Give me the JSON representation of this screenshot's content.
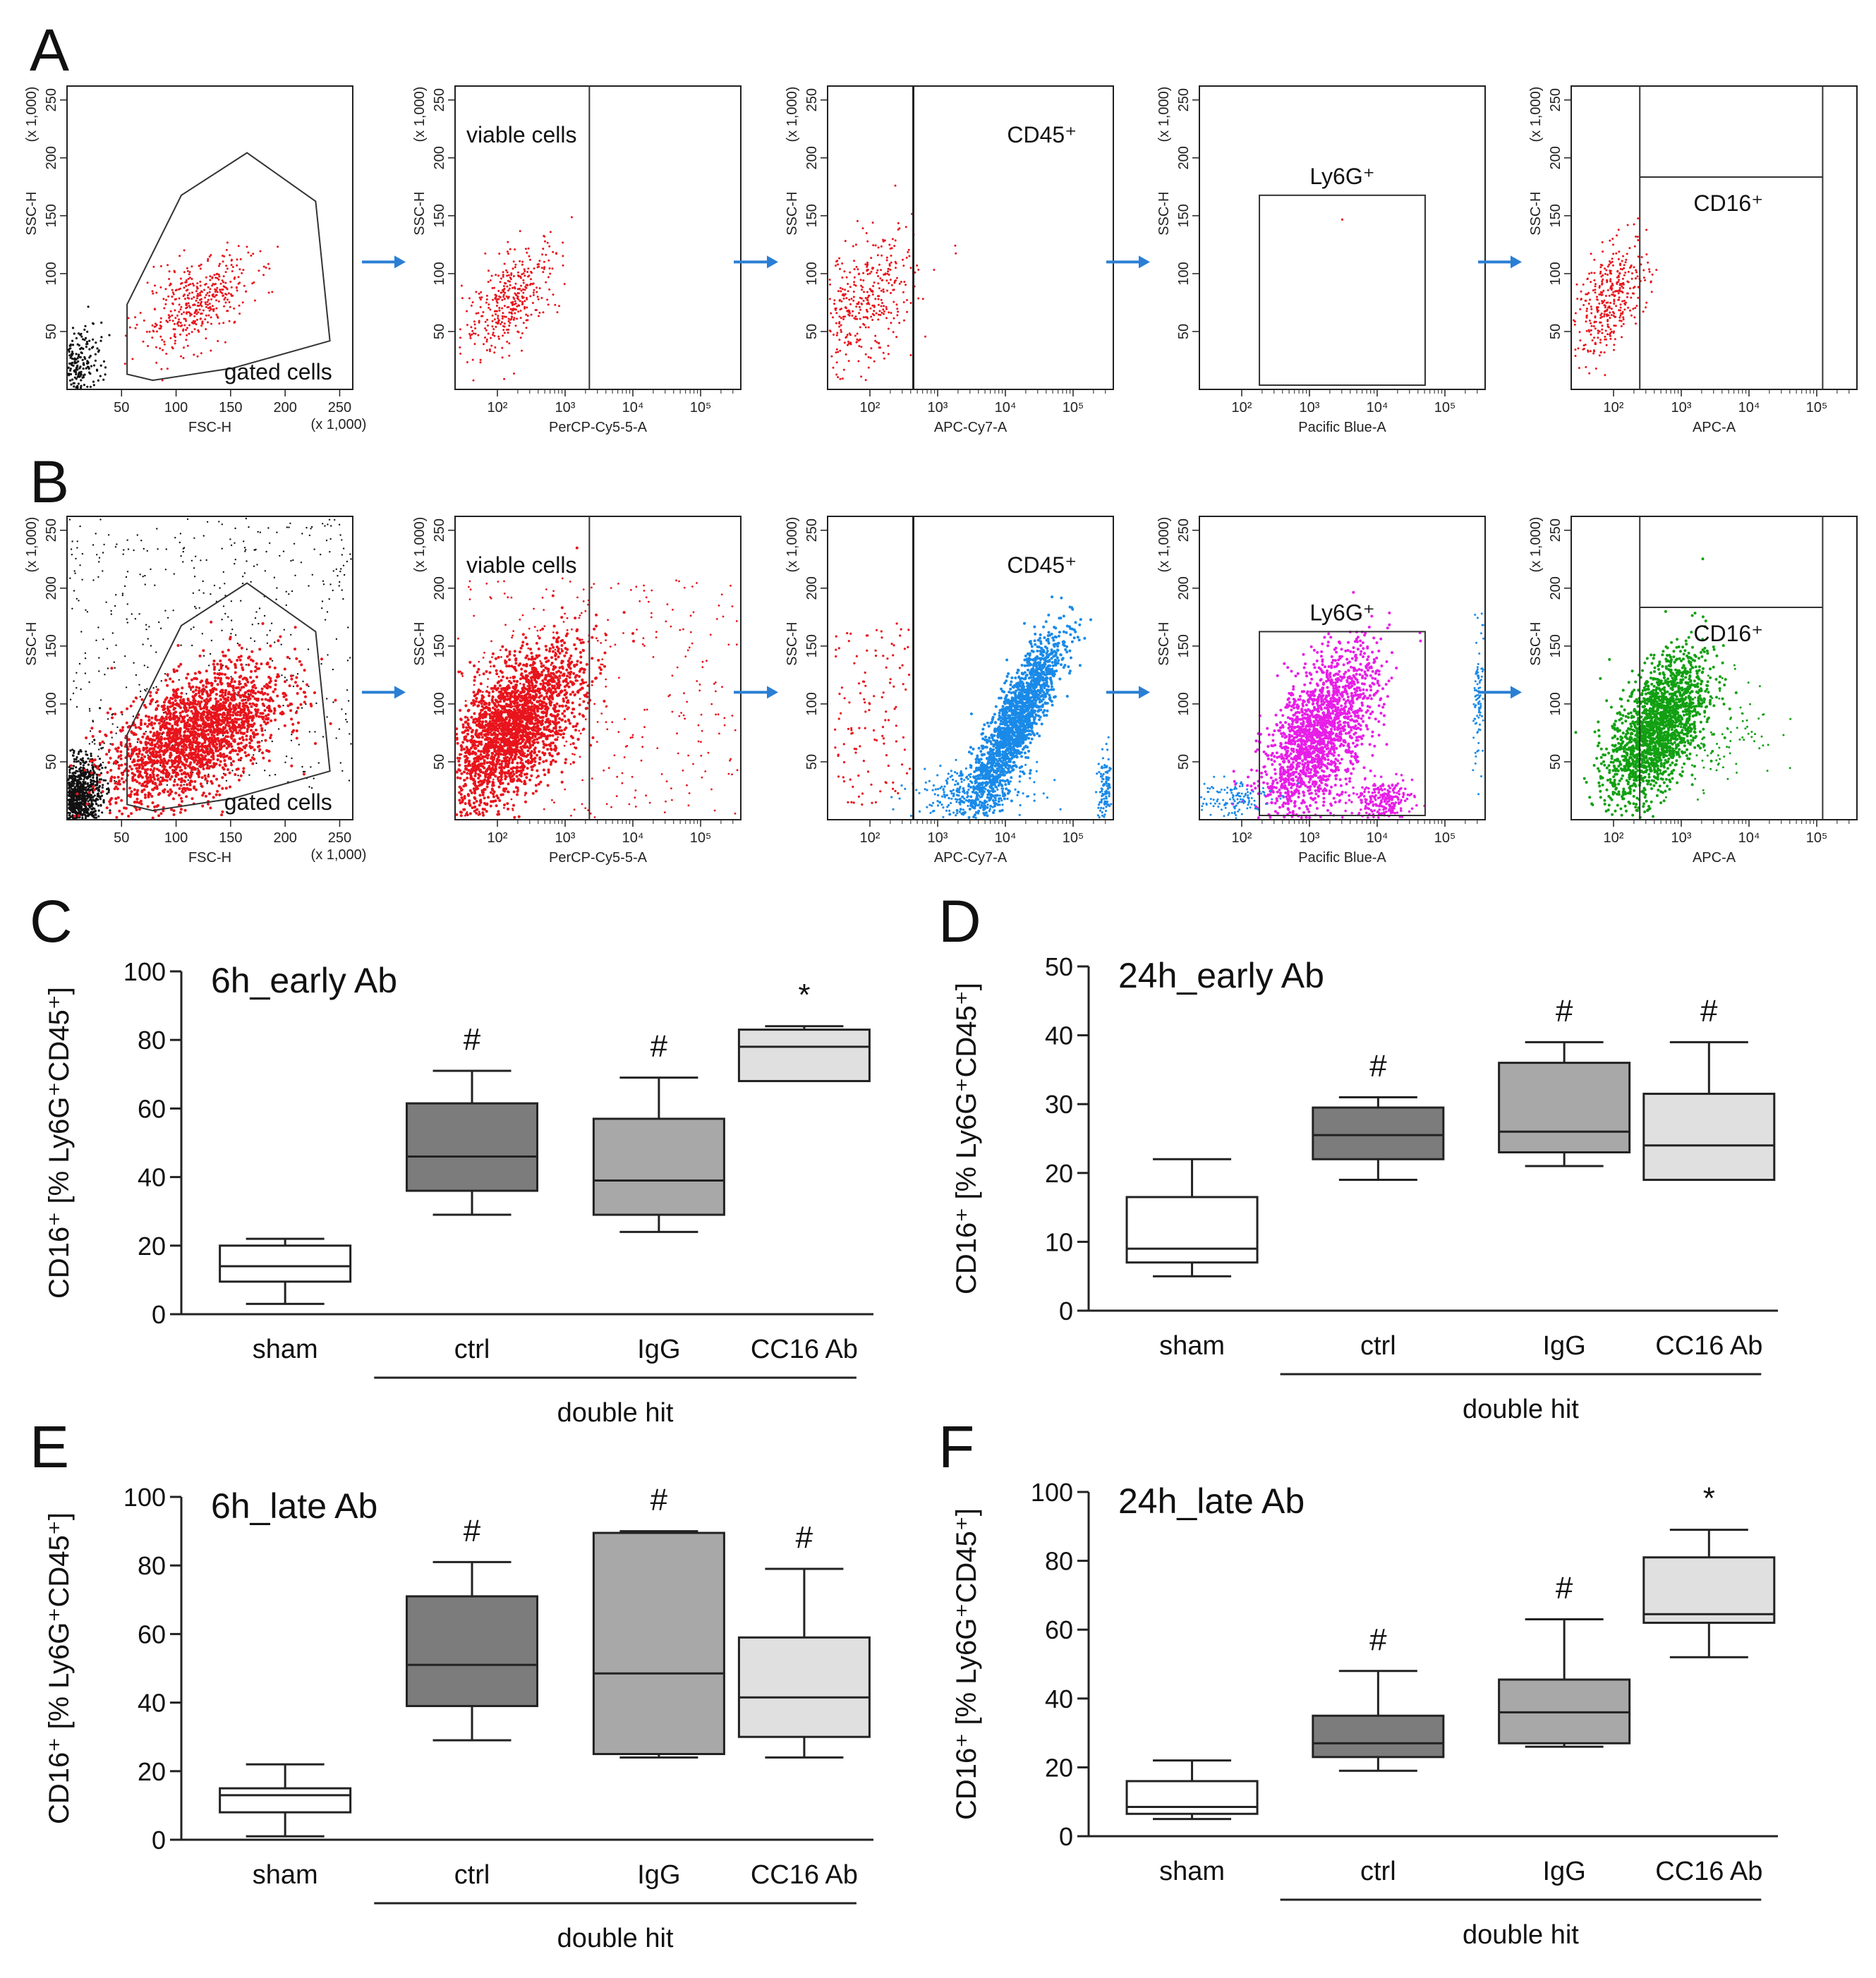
{
  "figure": {
    "panel_letters": [
      "A",
      "B",
      "C",
      "D",
      "E",
      "F"
    ]
  },
  "flow_rows": [
    {
      "id": "A",
      "plots": [
        {
          "xlabel": "FSC-H",
          "xscale": "(x 1,000)",
          "xticks": [
            "50",
            "100",
            "150",
            "200",
            "250"
          ],
          "ylabel": "SSC-H",
          "yscale": "(x 1,000)",
          "yticks": [
            "50",
            "100",
            "150",
            "200",
            "250"
          ],
          "gate_label": "gated cells",
          "kind": "fsc"
        },
        {
          "xlabel": "PerCP-Cy5-5-A",
          "xticks": [
            "10²",
            "10³",
            "10⁴",
            "10⁵"
          ],
          "ylabel": "SSC-H",
          "yscale": "(x 1,000)",
          "yticks": [
            "50",
            "100",
            "150",
            "200",
            "250"
          ],
          "gate_label": "viable cells",
          "kind": "viable"
        },
        {
          "xlabel": "APC-Cy7-A",
          "xticks": [
            "10²",
            "10³",
            "10⁴",
            "10⁵"
          ],
          "ylabel": "SSC-H",
          "yscale": "(x 1,000)",
          "yticks": [
            "50",
            "100",
            "150",
            "200",
            "250"
          ],
          "gate_label": "CD45⁺",
          "kind": "cd45"
        },
        {
          "xlabel": "Pacific Blue-A",
          "xticks": [
            "10²",
            "10³",
            "10⁴",
            "10⁵"
          ],
          "ylabel": "SSC-H",
          "yscale": "(x 1,000)",
          "yticks": [
            "50",
            "100",
            "150",
            "200",
            "250"
          ],
          "gate_label": "Ly6G⁺",
          "kind": "ly6g"
        },
        {
          "xlabel": "APC-A",
          "xticks": [
            "10²",
            "10³",
            "10⁴",
            "10⁵"
          ],
          "ylabel": "SSC-H",
          "yscale": "(x 1,000)",
          "yticks": [
            "50",
            "100",
            "150",
            "200",
            "250"
          ],
          "gate_label": "CD16⁺",
          "kind": "cd16"
        }
      ]
    },
    {
      "id": "B",
      "plots": [
        {
          "xlabel": "FSC-H",
          "xscale": "(x 1,000)",
          "xticks": [
            "50",
            "100",
            "150",
            "200",
            "250"
          ],
          "ylabel": "SSC-H",
          "yscale": "(x 1,000)",
          "yticks": [
            "50",
            "100",
            "150",
            "200",
            "250"
          ],
          "gate_label": "gated cells",
          "kind": "fsc"
        },
        {
          "xlabel": "PerCP-Cy5-5-A",
          "xticks": [
            "10²",
            "10³",
            "10⁴",
            "10⁵"
          ],
          "ylabel": "SSC-H",
          "yscale": "(x 1,000)",
          "yticks": [
            "50",
            "100",
            "150",
            "200",
            "250"
          ],
          "gate_label": "viable cells",
          "kind": "viable"
        },
        {
          "xlabel": "APC-Cy7-A",
          "xticks": [
            "10²",
            "10³",
            "10⁴",
            "10⁵"
          ],
          "ylabel": "SSC-H",
          "yscale": "(x 1,000)",
          "yticks": [
            "50",
            "100",
            "150",
            "200",
            "250"
          ],
          "gate_label": "CD45⁺",
          "kind": "cd45"
        },
        {
          "xlabel": "Pacific Blue-A",
          "xticks": [
            "10²",
            "10³",
            "10⁴",
            "10⁵"
          ],
          "ylabel": "SSC-H",
          "yscale": "(x 1,000)",
          "yticks": [
            "50",
            "100",
            "150",
            "200",
            "250"
          ],
          "gate_label": "Ly6G⁺",
          "kind": "ly6g"
        },
        {
          "xlabel": "APC-A",
          "xticks": [
            "10²",
            "10³",
            "10⁴",
            "10⁵"
          ],
          "ylabel": "SSC-H",
          "yscale": "(x 1,000)",
          "yticks": [
            "50",
            "100",
            "150",
            "200",
            "250"
          ],
          "gate_label": "CD16⁺",
          "kind": "cd16"
        }
      ]
    }
  ],
  "colors": {
    "axis": "#222222",
    "arrow": "#2a7fd4",
    "dot_black": "#111111",
    "dot_red": "#e8141c",
    "dot_blue": "#1a8ae8",
    "dot_magenta": "#e81ee8",
    "dot_green": "#12a012",
    "box_sham": "#ffffff",
    "box_ctrl": "#7c7c7c",
    "box_igg": "#a8a8a8",
    "box_cc16": "#e0e0e0"
  },
  "chart_data": [
    {
      "panel": "C",
      "type": "box",
      "title": "6h_early Ab",
      "ylabel": "CD16⁺ [% Ly6G⁺CD45⁺]",
      "ylim": [
        0,
        100
      ],
      "yticks": [
        "0",
        "20",
        "40",
        "60",
        "80",
        "100"
      ],
      "categories": [
        "sham",
        "ctrl",
        "IgG",
        "CC16 Ab"
      ],
      "group_label": "double hit",
      "boxes": [
        {
          "min": 3,
          "q1": 9.5,
          "median": 14,
          "q3": 20,
          "max": 22
        },
        {
          "min": 29,
          "q1": 36,
          "median": 46,
          "q3": 61.5,
          "max": 71
        },
        {
          "min": 24,
          "q1": 29,
          "median": 39,
          "q3": 57,
          "max": 69
        },
        {
          "min": 68,
          "q1": 68,
          "median": 78,
          "q3": 83,
          "max": 84
        }
      ],
      "markers": [
        "",
        "#",
        "#",
        "*"
      ]
    },
    {
      "panel": "D",
      "type": "box",
      "title": "24h_early Ab",
      "ylabel": "CD16⁺ [% Ly6G⁺CD45⁺]",
      "ylim": [
        0,
        50
      ],
      "yticks": [
        "0",
        "10",
        "20",
        "30",
        "40",
        "50"
      ],
      "categories": [
        "sham",
        "ctrl",
        "IgG",
        "CC16 Ab"
      ],
      "group_label": "double hit",
      "boxes": [
        {
          "min": 5,
          "q1": 7,
          "median": 9,
          "q3": 16.5,
          "max": 22
        },
        {
          "min": 19,
          "q1": 22,
          "median": 25.5,
          "q3": 29.5,
          "max": 31
        },
        {
          "min": 21,
          "q1": 23,
          "median": 26,
          "q3": 36,
          "max": 39
        },
        {
          "min": 19,
          "q1": 19,
          "median": 24,
          "q3": 31.5,
          "max": 39
        }
      ],
      "markers": [
        "",
        "#",
        "#",
        "#"
      ]
    },
    {
      "panel": "E",
      "type": "box",
      "title": "6h_late Ab",
      "ylabel": "CD16⁺ [% Ly6G⁺CD45⁺]",
      "ylim": [
        0,
        100
      ],
      "yticks": [
        "0",
        "20",
        "40",
        "60",
        "80",
        "100"
      ],
      "categories": [
        "sham",
        "ctrl",
        "IgG",
        "CC16 Ab"
      ],
      "group_label": "double hit",
      "boxes": [
        {
          "min": 1,
          "q1": 8,
          "median": 13,
          "q3": 15,
          "max": 22
        },
        {
          "min": 29,
          "q1": 39,
          "median": 51,
          "q3": 71,
          "max": 81
        },
        {
          "min": 24,
          "q1": 25,
          "median": 48.5,
          "q3": 89.5,
          "max": 90
        },
        {
          "min": 24,
          "q1": 30,
          "median": 41.5,
          "q3": 59,
          "max": 79
        }
      ],
      "markers": [
        "",
        "#",
        "#",
        "#"
      ]
    },
    {
      "panel": "F",
      "type": "box",
      "title": "24h_late Ab",
      "ylabel": "CD16⁺ [% Ly6G⁺CD45⁺]",
      "ylim": [
        0,
        100
      ],
      "yticks": [
        "0",
        "20",
        "40",
        "60",
        "80",
        "100"
      ],
      "categories": [
        "sham",
        "ctrl",
        "IgG",
        "CC16 Ab"
      ],
      "group_label": "double hit",
      "boxes": [
        {
          "min": 5,
          "q1": 6.5,
          "median": 8.5,
          "q3": 16,
          "max": 22
        },
        {
          "min": 19,
          "q1": 23,
          "median": 27,
          "q3": 35,
          "max": 48
        },
        {
          "min": 26,
          "q1": 27,
          "median": 36,
          "q3": 45.5,
          "max": 63
        },
        {
          "min": 52,
          "q1": 62,
          "median": 64.5,
          "q3": 81,
          "max": 89
        }
      ],
      "markers": [
        "",
        "#",
        "#",
        "*"
      ]
    }
  ]
}
